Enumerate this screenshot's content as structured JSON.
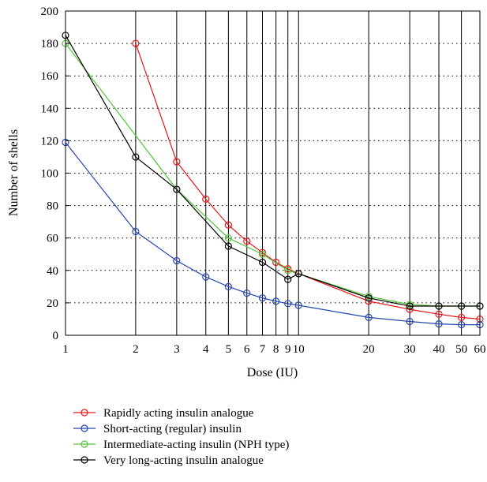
{
  "chart_data": {
    "type": "line",
    "title": "",
    "xlabel": "Dose (IU)",
    "ylabel": "Number of shells",
    "x_scale": "log",
    "xlim": [
      1,
      60
    ],
    "ylim": [
      0,
      200
    ],
    "x_ticks": [
      "1",
      "2",
      "3",
      "4",
      "5",
      "6",
      "7",
      "8",
      "9",
      "10",
      "20",
      "30",
      "40",
      "50",
      "60"
    ],
    "x_tick_values": [
      1,
      2,
      3,
      4,
      5,
      6,
      7,
      8,
      9,
      10,
      20,
      30,
      40,
      50,
      60
    ],
    "y_ticks": [
      "0",
      "20",
      "40",
      "60",
      "80",
      "100",
      "120",
      "140",
      "160",
      "180",
      "200"
    ],
    "y_tick_values": [
      0,
      20,
      40,
      60,
      80,
      100,
      120,
      140,
      160,
      180,
      200
    ],
    "grid": "vertical solid lines at each x tick, dotted horizontal lines at each y tick",
    "legend_position": "bottom",
    "series": [
      {
        "name": "Rapidly acting insulin analogue",
        "color": "#e8141b",
        "x": [
          2,
          3,
          4,
          5,
          6,
          7,
          8,
          9,
          10,
          20,
          30,
          40,
          50,
          60
        ],
        "y": [
          180,
          107,
          84,
          68,
          58,
          51,
          45,
          41,
          38,
          21,
          16,
          13,
          11,
          10
        ]
      },
      {
        "name": "Short-acting (regular) insulin",
        "color": "#2444b0",
        "x": [
          1,
          2,
          3,
          4,
          5,
          6,
          7,
          8,
          9,
          10,
          20,
          30,
          40,
          50,
          60
        ],
        "y": [
          119,
          64,
          46,
          36,
          30,
          26,
          23,
          21,
          19.5,
          18.5,
          11,
          8.5,
          7,
          6.5,
          6.5
        ]
      },
      {
        "name": "Intermediate-acting insulin (NPH type)",
        "color": "#52c43a",
        "x": [
          1,
          3,
          5,
          7,
          9,
          20,
          30,
          40,
          50,
          60
        ],
        "y": [
          180,
          90,
          60,
          50,
          40,
          24,
          19,
          18,
          18,
          18
        ]
      },
      {
        "name": "Very long-acting insulin analogue",
        "color": "#000000",
        "x": [
          1,
          2,
          3,
          5,
          7,
          9,
          10,
          20,
          30,
          40,
          50,
          60
        ],
        "y": [
          185,
          110,
          90,
          55,
          45,
          34.5,
          38,
          23,
          18,
          18,
          18,
          18
        ]
      }
    ]
  }
}
